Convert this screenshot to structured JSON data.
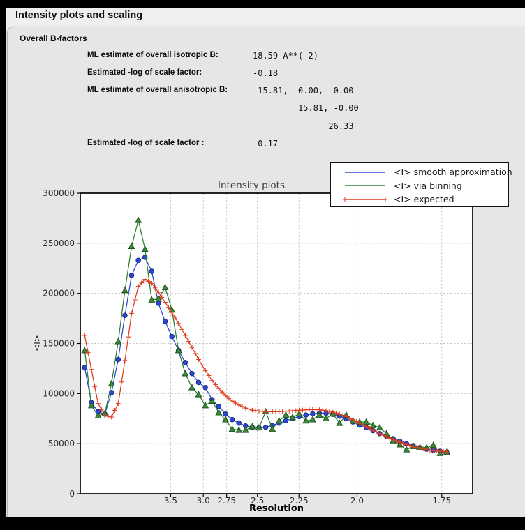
{
  "window": {
    "title": "Intensity plots and scaling"
  },
  "section": {
    "heading": "Overall B-factors",
    "rows": [
      {
        "label": "ML estimate of overall isotropic B:",
        "value": "18.59 A**(-2)"
      },
      {
        "label": "Estimated -log of scale factor:",
        "value": "-0.18"
      },
      {
        "label": "ML estimate of overall anisotropic B:",
        "value": " 15.81,  0.00,  0.00"
      },
      {
        "label": "",
        "value": "         15.81, -0.00"
      },
      {
        "label": "",
        "value": "               26.33"
      },
      {
        "label": "Estimated -log of scale factor :",
        "value": "-0.17"
      }
    ]
  },
  "chart_data": {
    "type": "line",
    "title": "Intensity plots",
    "xlabel": "Resolution",
    "ylabel": "<I>",
    "x_axis_note": "resolution d in Angstrom, axis linear in s2 = 1/d^2",
    "grid": true,
    "legend_position": "top-right",
    "ylim": [
      0,
      300000
    ],
    "yticks": [
      0,
      50000,
      100000,
      150000,
      200000,
      250000,
      300000
    ],
    "ytick_labels": [
      "0",
      "50000",
      "100000",
      "150000",
      "200000",
      "250000",
      "300000"
    ],
    "xticks_d": [
      3.5,
      3.0,
      2.75,
      2.5,
      2.25,
      2.0,
      1.75
    ],
    "xtick_labels": [
      "3.5",
      "3.0",
      "2.75",
      "2.5",
      "2.25",
      "2.0",
      "1.75"
    ],
    "x_s2_range": [
      0.0,
      0.3544
    ],
    "x_s2": [
      0.00398,
      0.01003,
      0.01609,
      0.02215,
      0.0282,
      0.03426,
      0.04031,
      0.04637,
      0.05243,
      0.05848,
      0.06454,
      0.0706,
      0.07665,
      0.08271,
      0.08876,
      0.09482,
      0.10088,
      0.10693,
      0.11299,
      0.11905,
      0.1251,
      0.13116,
      0.13722,
      0.14327,
      0.14933,
      0.15538,
      0.16144,
      0.1675,
      0.17355,
      0.17961,
      0.18567,
      0.19172,
      0.19778,
      0.20383,
      0.20989,
      0.21595,
      0.222,
      0.22806,
      0.23412,
      0.24017,
      0.24623,
      0.25229,
      0.25834,
      0.2644,
      0.27045,
      0.27651,
      0.28257,
      0.28862,
      0.29468,
      0.30074,
      0.30679,
      0.31285,
      0.3189,
      0.32496,
      0.33102
    ],
    "series": [
      {
        "name": "<I> smooth approximation",
        "color": "#2b49d8",
        "marker": "circle",
        "values": [
          126000,
          91000,
          82000,
          79500,
          101000,
          134000,
          178000,
          218000,
          233000,
          236000,
          222000,
          190000,
          172000,
          157000,
          143000,
          131000,
          120000,
          111000,
          106000,
          94000,
          87000,
          79500,
          74000,
          70500,
          67700,
          66300,
          65900,
          66300,
          68200,
          70500,
          72800,
          75100,
          77000,
          78600,
          79800,
          80200,
          80200,
          79300,
          77400,
          75100,
          71600,
          68500,
          66000,
          63000,
          60000,
          57500,
          55000,
          52500,
          50000,
          48000,
          46000,
          44500,
          43500,
          42500,
          41500
        ]
      },
      {
        "name": "<I> via binning",
        "color": "#2e7d2e",
        "marker": "triangle",
        "values": [
          143000,
          88000,
          78000,
          80000,
          110000,
          152000,
          203000,
          247000,
          273000,
          244000,
          193500,
          194500,
          206000,
          183500,
          143000,
          120000,
          106000,
          99000,
          88000,
          92500,
          81000,
          74000,
          64500,
          63500,
          63500,
          67000,
          65900,
          82000,
          64700,
          72800,
          78600,
          76300,
          79800,
          72800,
          74000,
          78600,
          75100,
          79800,
          70500,
          78600,
          72800,
          71600,
          71600,
          68200,
          65900,
          60000,
          53000,
          49000,
          44000,
          47300,
          46100,
          46000,
          48500,
          40400,
          41500
        ]
      },
      {
        "name": "<I> expected",
        "color": "#e03a1e",
        "marker": "plus",
        "values": [
          158000,
          124000,
          90000,
          78000,
          76500,
          90000,
          133000,
          180000,
          207000,
          214000,
          210000,
          201000,
          191000,
          181000,
          170000,
          158000,
          146000,
          134000,
          123000,
          113000,
          105000,
          98000,
          92500,
          88500,
          85500,
          83500,
          82500,
          82000,
          81800,
          82000,
          82300,
          82800,
          83300,
          83800,
          84000,
          83800,
          83000,
          81500,
          79500,
          77000,
          74000,
          70500,
          67000,
          63500,
          60000,
          57000,
          54000,
          51500,
          49000,
          47000,
          45500,
          44000,
          43000,
          42300,
          42000
        ]
      }
    ]
  }
}
